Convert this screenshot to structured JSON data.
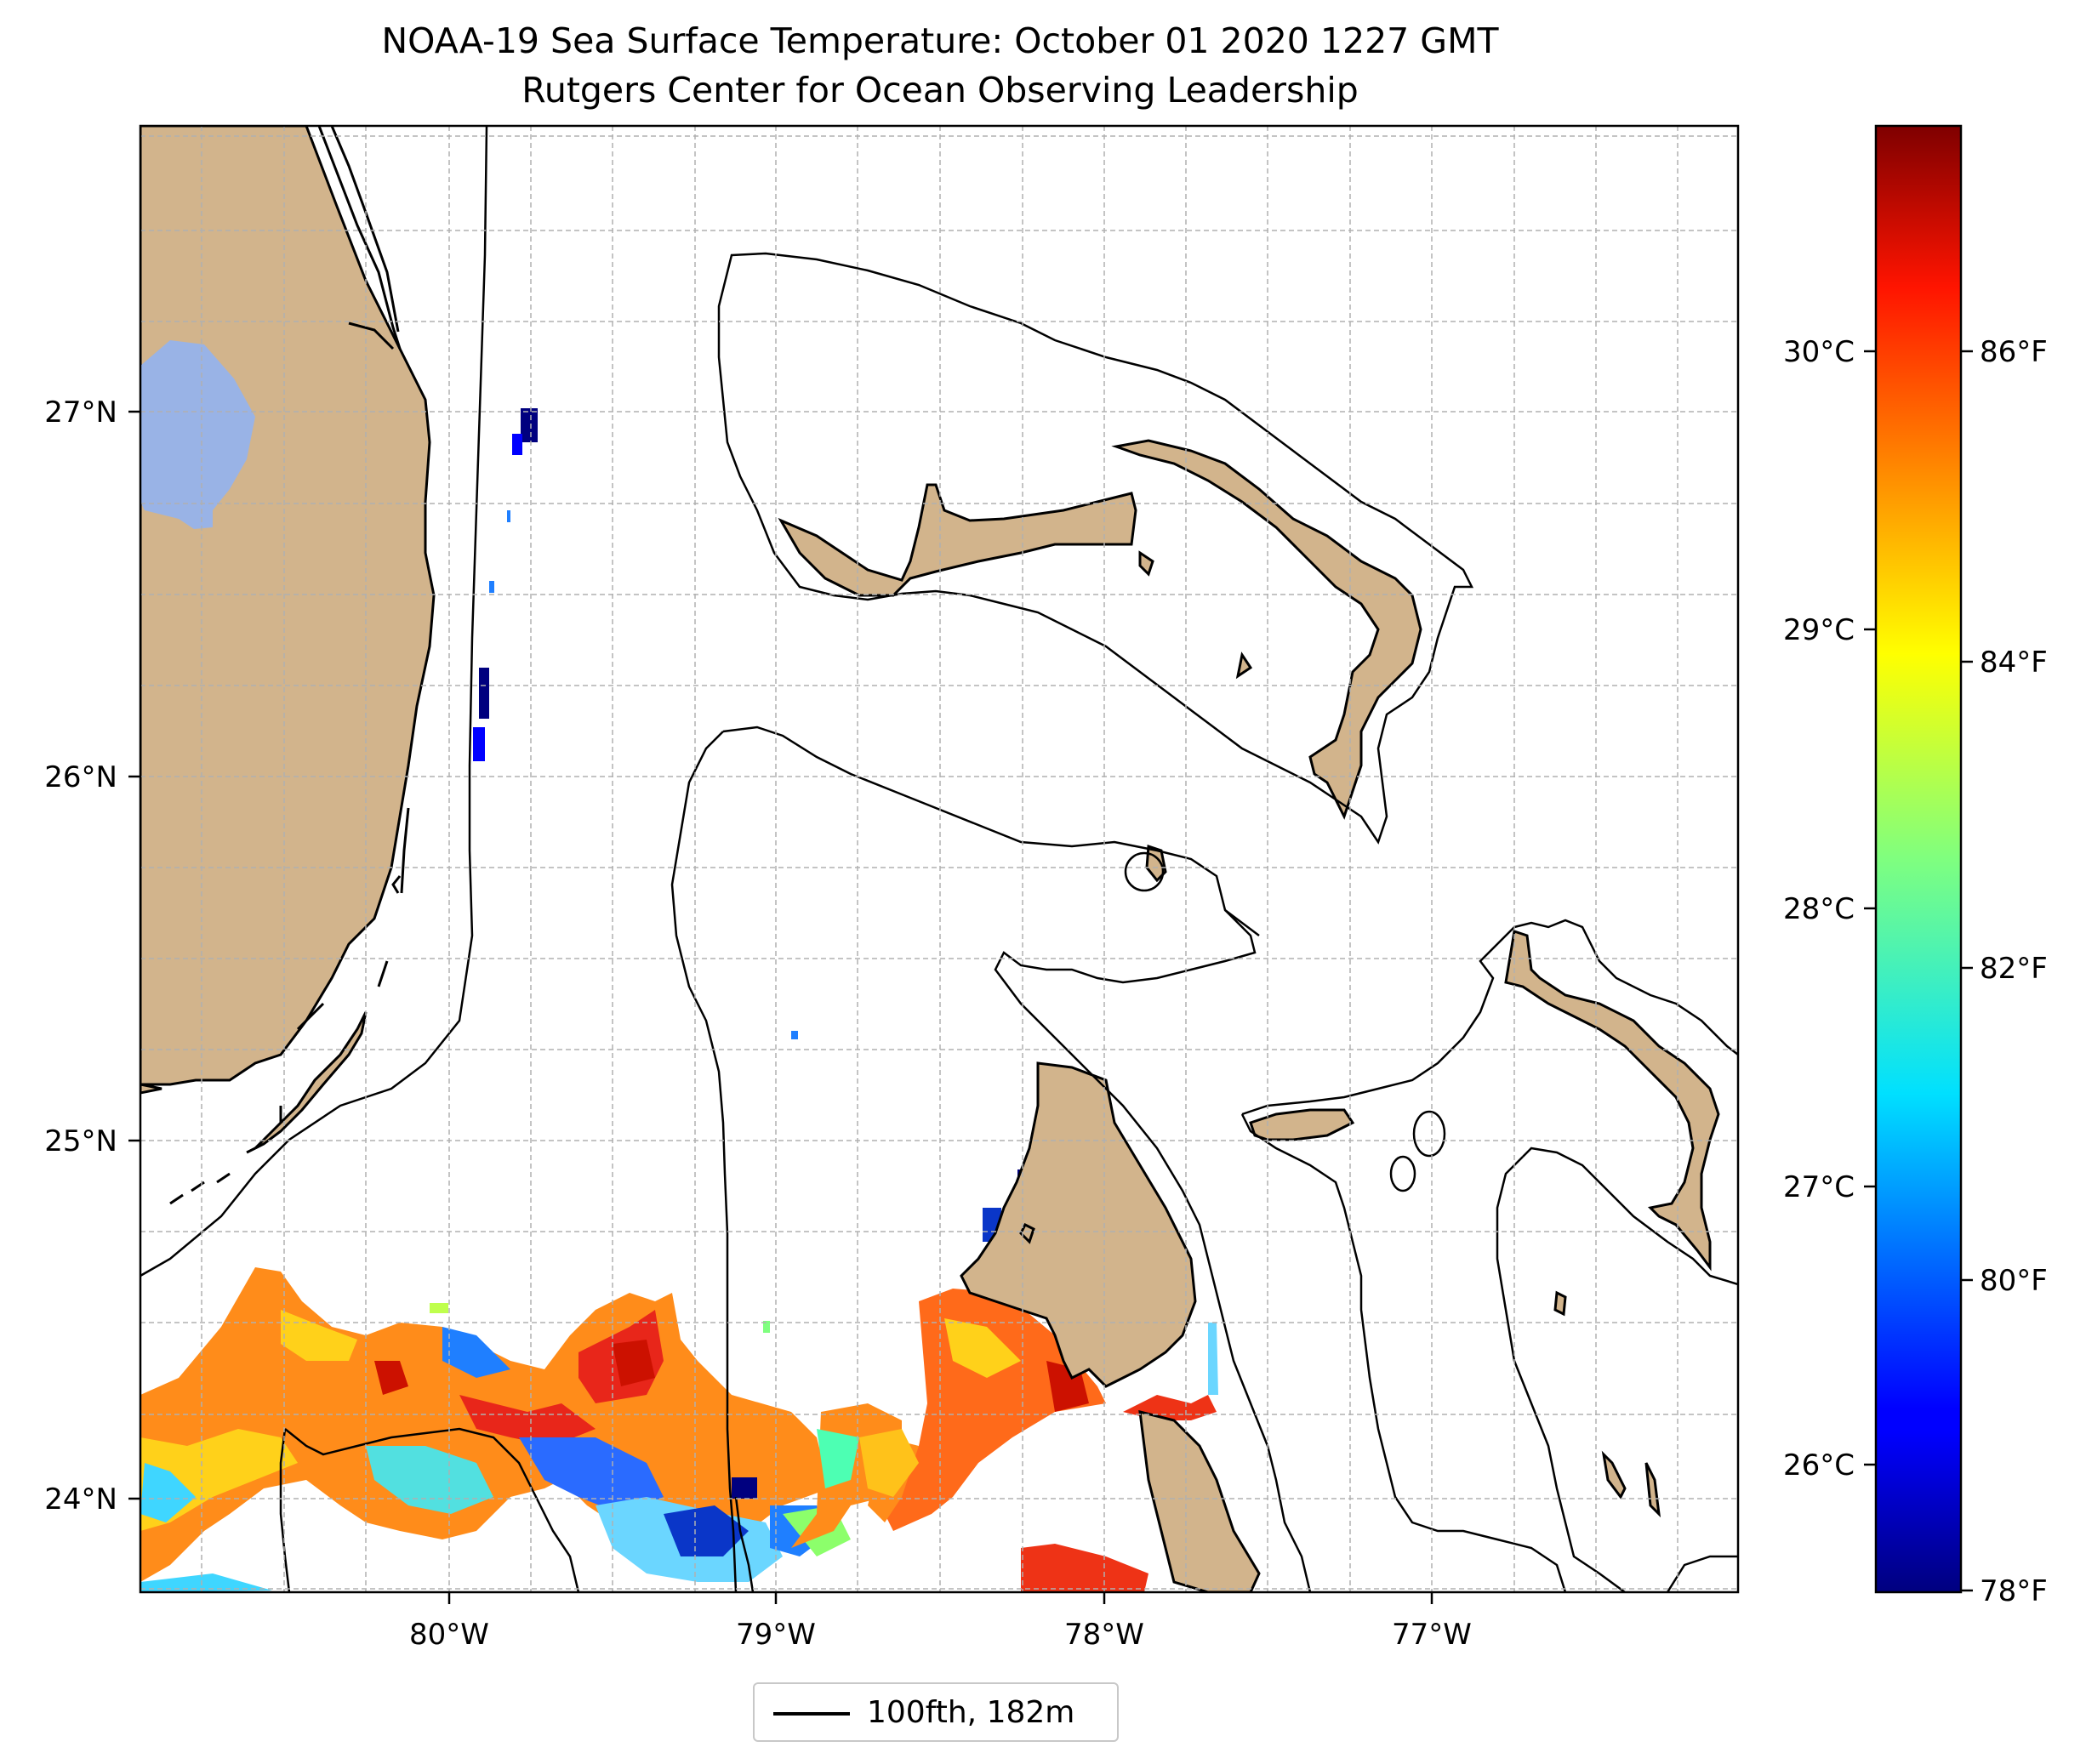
{
  "title": "NOAA-19 Sea Surface Temperature: October 01 2020 1227 GMT",
  "subtitle": "Rutgers Center for Ocean Observing Leadership",
  "axes": {
    "lon_ticks": [
      "80°W",
      "79°W",
      "78°W",
      "77°W"
    ],
    "lat_ticks": [
      "27°N",
      "26°N",
      "25°N",
      "24°N"
    ],
    "grid": true
  },
  "colorbar": {
    "colormap": "jet",
    "celsius_ticks": [
      "26°C",
      "27°C",
      "28°C",
      "29°C",
      "30°C"
    ],
    "fahrenheit_ticks": [
      "78°F",
      "80°F",
      "82°F",
      "84°F",
      "86°F"
    ],
    "range_F": [
      78,
      87.5
    ]
  },
  "legend": {
    "label": "100fth, 182m"
  },
  "colors": {
    "land": "#d2b48c",
    "lake": "#99b3e6",
    "contour": "#000000"
  }
}
